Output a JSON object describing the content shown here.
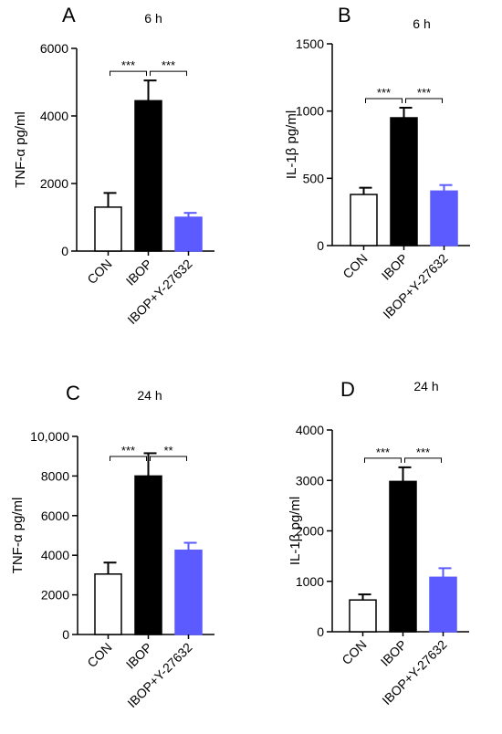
{
  "chart_data": [
    {
      "type": "bar",
      "panel": "A",
      "title": "6 h",
      "ylabel": "TNF-α pg/ml",
      "categories": [
        "CON",
        "IBOP",
        "IBOP+Y-27632"
      ],
      "values": [
        1300,
        4450,
        1000
      ],
      "errors": [
        420,
        600,
        130
      ],
      "colors": [
        "#ffffff",
        "#000000",
        "#5b5bff"
      ],
      "ylim": [
        0,
        6000
      ],
      "yticks": [
        0,
        2000,
        4000,
        6000
      ],
      "ytick_labels": [
        "0",
        "2000",
        "4000",
        "6000"
      ],
      "significance": [
        {
          "from": 0,
          "to": 1,
          "label": "***"
        },
        {
          "from": 1,
          "to": 2,
          "label": "***"
        }
      ]
    },
    {
      "type": "bar",
      "panel": "B",
      "title": "6 h",
      "ylabel": "IL-1β pg/ml",
      "categories": [
        "CON",
        "IBOP",
        "IBOP+Y-27632"
      ],
      "values": [
        380,
        950,
        405
      ],
      "errors": [
        50,
        75,
        45
      ],
      "colors": [
        "#ffffff",
        "#000000",
        "#5b5bff"
      ],
      "ylim": [
        0,
        1500
      ],
      "yticks": [
        0,
        500,
        1000,
        1500
      ],
      "ytick_labels": [
        "0",
        "500",
        "1000",
        "1500"
      ],
      "significance": [
        {
          "from": 0,
          "to": 1,
          "label": "***"
        },
        {
          "from": 1,
          "to": 2,
          "label": "***"
        }
      ]
    },
    {
      "type": "bar",
      "panel": "C",
      "title": "24 h",
      "ylabel": "TNF-α pg/ml",
      "categories": [
        "CON",
        "IBOP",
        "IBOP+Y-27632"
      ],
      "values": [
        3050,
        8000,
        4250
      ],
      "errors": [
        580,
        1150,
        380
      ],
      "colors": [
        "#ffffff",
        "#000000",
        "#5b5bff"
      ],
      "ylim": [
        0,
        10000
      ],
      "yticks": [
        0,
        2000,
        4000,
        6000,
        8000,
        10000
      ],
      "ytick_labels": [
        "0",
        "2000",
        "4000",
        "6000",
        "8000",
        "10,000"
      ],
      "significance": [
        {
          "from": 0,
          "to": 1,
          "label": "***"
        },
        {
          "from": 1,
          "to": 2,
          "label": "**"
        }
      ]
    },
    {
      "type": "bar",
      "panel": "D",
      "title": "24 h",
      "ylabel": "IL-1β pg/ml",
      "categories": [
        "CON",
        "IBOP",
        "IBOP+Y-27632"
      ],
      "values": [
        630,
        2980,
        1080
      ],
      "errors": [
        110,
        280,
        180
      ],
      "colors": [
        "#ffffff",
        "#000000",
        "#5b5bff"
      ],
      "ylim": [
        0,
        4000
      ],
      "yticks": [
        0,
        1000,
        2000,
        3000,
        4000
      ],
      "ytick_labels": [
        "0",
        "1000",
        "2000",
        "3000",
        "4000"
      ],
      "significance": [
        {
          "from": 0,
          "to": 1,
          "label": "***"
        },
        {
          "from": 1,
          "to": 2,
          "label": "***"
        }
      ]
    }
  ]
}
